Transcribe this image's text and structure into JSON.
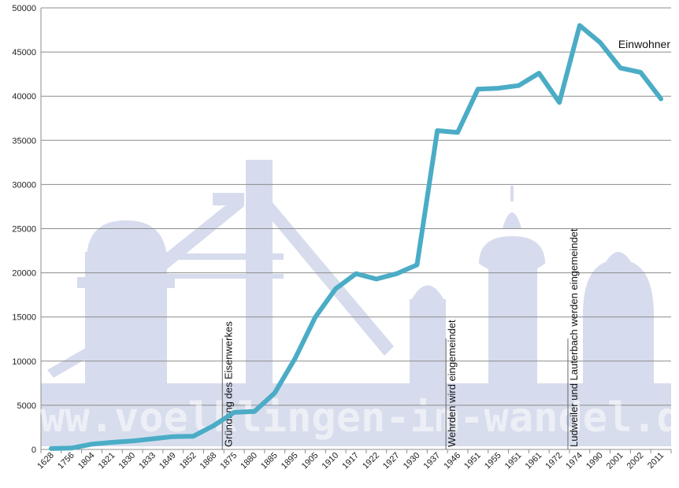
{
  "chart_data": {
    "type": "line",
    "title": "",
    "xlabel": "",
    "ylabel": "",
    "ylim": [
      0,
      50000
    ],
    "y_ticks": [
      0,
      5000,
      10000,
      15000,
      20000,
      25000,
      30000,
      35000,
      40000,
      45000,
      50000
    ],
    "grid": "horizontal",
    "legend_position": "top-right",
    "categories": [
      "1628",
      "1756",
      "1804",
      "1821",
      "1830",
      "1833",
      "1849",
      "1852",
      "1868",
      "1875",
      "1880",
      "1885",
      "1895",
      "1905",
      "1910",
      "1917",
      "1922",
      "1927",
      "1930",
      "1937",
      "1946",
      "1951",
      "1955",
      "1951",
      "1961",
      "1972",
      "1974",
      "1990",
      "2001",
      "2002",
      "2011"
    ],
    "series": [
      {
        "name": "Einwohner",
        "color": "#4bacc6",
        "values": [
          100,
          150,
          600,
          800,
          950,
          1200,
          1450,
          1500,
          2700,
          4200,
          4300,
          6400,
          10300,
          15000,
          18200,
          19900,
          19300,
          19900,
          20900,
          36100,
          35900,
          40800,
          40900,
          41200,
          42600,
          39300,
          48000,
          46100,
          43200,
          42700,
          39700
        ]
      }
    ],
    "annotations": [
      {
        "category_index": 9,
        "text": "Gründung des Eisenwerkes"
      },
      {
        "category_index": 20,
        "text": "Wehrden wird eingemeindet"
      },
      {
        "category_index": 26,
        "text": "Ludweiler und Lauterbach werden eingemeindet"
      }
    ],
    "watermark": "www.voelklingen-im-wandel.de"
  }
}
